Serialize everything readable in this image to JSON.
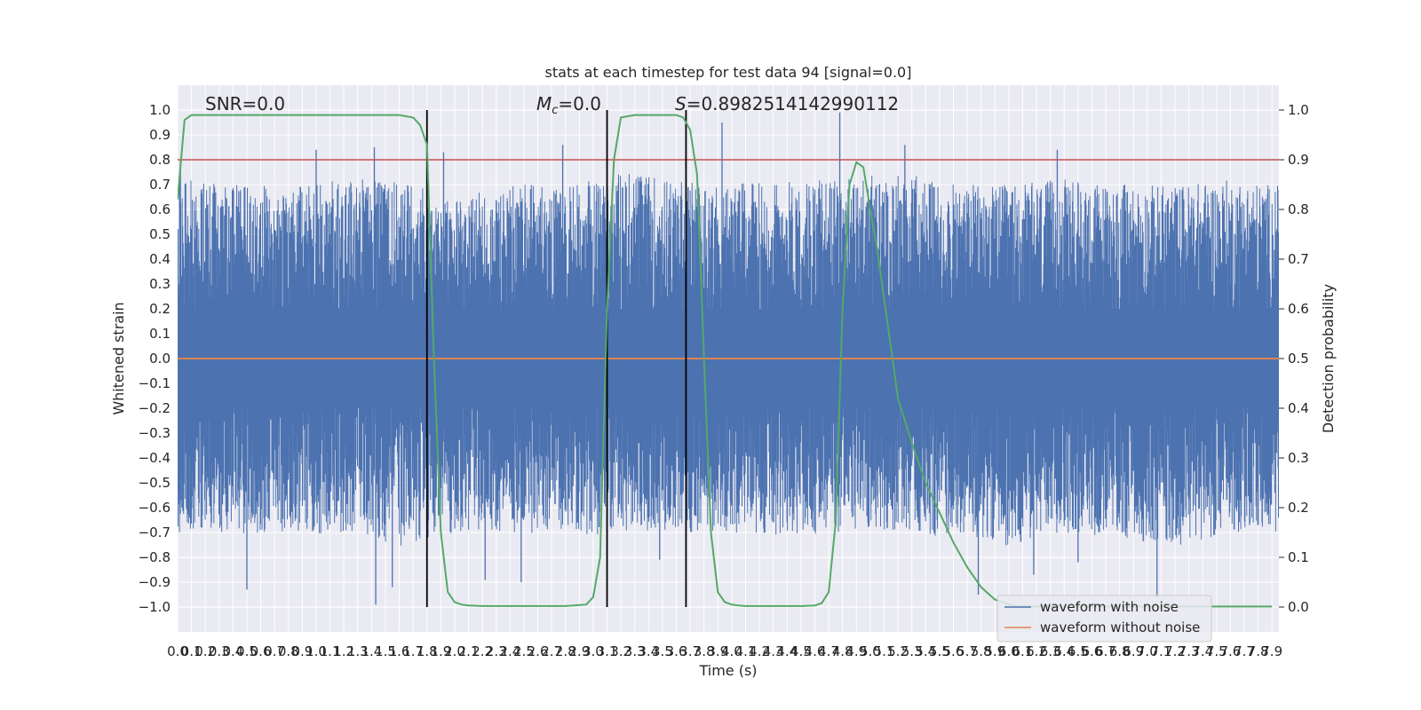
{
  "chart_data": {
    "type": "line",
    "title": "stats at each timestep for test data 94 [signal=0.0]",
    "xlabel": "Time (s)",
    "ylabel": "Whitened strain",
    "ylabel_right": "Detection probability",
    "xlim": [
      0.0,
      7.95
    ],
    "ylim": [
      -1.1,
      1.1
    ],
    "ylim_right": [
      -0.05,
      1.05
    ],
    "x_ticks": [
      0.0,
      0.1,
      0.2,
      0.3,
      0.4,
      0.5,
      0.6,
      0.7,
      0.8,
      0.9,
      1.0,
      1.1,
      1.2,
      1.3,
      1.4,
      1.5,
      1.6,
      1.7,
      1.8,
      1.9,
      2.0,
      2.1,
      2.2,
      2.3,
      2.4,
      2.5,
      2.6,
      2.7,
      2.8,
      2.9,
      3.0,
      3.1,
      3.2,
      3.3,
      3.4,
      3.5,
      3.6,
      3.7,
      3.8,
      3.9,
      4.0,
      4.1,
      4.2,
      4.3,
      4.4,
      4.5,
      4.6,
      4.7,
      4.8,
      4.9,
      5.0,
      5.1,
      5.2,
      5.3,
      5.4,
      5.5,
      5.6,
      5.7,
      5.8,
      5.9,
      6.0,
      6.1,
      6.2,
      6.3,
      6.4,
      6.5,
      6.6,
      6.7,
      6.8,
      6.9,
      7.0,
      7.1,
      7.2,
      7.3,
      7.4,
      7.5,
      7.6,
      7.7,
      7.8,
      7.9
    ],
    "y_ticks_left": [
      "1.0",
      "0.9",
      "0.8",
      "0.7",
      "0.6",
      "0.5",
      "0.4",
      "0.3",
      "0.2",
      "0.1",
      "0.0",
      "−0.1",
      "−0.2",
      "−0.3",
      "−0.4",
      "−0.5",
      "−0.6",
      "−0.7",
      "−0.8",
      "−0.9",
      "−1.0"
    ],
    "y_ticks_right": [
      "1.0",
      "0.9",
      "0.8",
      "0.7",
      "0.6",
      "0.5",
      "0.4",
      "0.3",
      "0.2",
      "0.1",
      "0.0"
    ],
    "grid": true,
    "legend_position": "lower-right",
    "annotations": {
      "snr": "SNR=0.0",
      "mc_symbol": "M",
      "mc_sub": "c",
      "mc_value": "=0.0",
      "s_symbol": "S",
      "s_value": "=0.8982514142990112"
    },
    "threshold_line": {
      "axis": "right",
      "y": 0.9,
      "color": "#c44e52"
    },
    "vertical_markers": [
      1.8,
      3.1,
      3.67
    ],
    "series": [
      {
        "name": "waveform with noise",
        "axis": "left",
        "color": "#4c72b0",
        "description_values": "noise, typical envelope about ±0.3 to ±0.5, peaks near 0.85 and -0.95",
        "envelope_x": [
          0.0,
          0.4,
          0.8,
          1.2,
          1.6,
          2.0,
          2.4,
          2.8,
          3.2,
          3.6,
          4.0,
          4.4,
          4.8,
          5.2,
          5.6,
          6.0,
          6.4,
          6.8,
          7.2,
          7.6,
          7.95
        ],
        "envelope_upper": [
          0.55,
          0.5,
          0.5,
          0.52,
          0.52,
          0.45,
          0.5,
          0.5,
          0.55,
          0.52,
          0.5,
          0.52,
          0.52,
          0.55,
          0.5,
          0.5,
          0.52,
          0.5,
          0.5,
          0.52,
          0.5
        ],
        "envelope_lower": [
          -0.5,
          -0.5,
          -0.52,
          -0.5,
          -0.55,
          -0.5,
          -0.5,
          -0.52,
          -0.5,
          -0.5,
          -0.5,
          -0.52,
          -0.5,
          -0.5,
          -0.52,
          -0.55,
          -0.5,
          -0.52,
          -0.55,
          -0.5,
          -0.5
        ],
        "spikes": [
          {
            "x": 0.02,
            "y": 0.8
          },
          {
            "x": 1.0,
            "y": 0.84
          },
          {
            "x": 1.42,
            "y": 0.85
          },
          {
            "x": 1.92,
            "y": 0.83
          },
          {
            "x": 2.78,
            "y": 0.86
          },
          {
            "x": 3.93,
            "y": 0.95
          },
          {
            "x": 4.78,
            "y": 0.99
          },
          {
            "x": 5.25,
            "y": 0.86
          },
          {
            "x": 6.35,
            "y": 0.84
          },
          {
            "x": 0.5,
            "y": -0.93
          },
          {
            "x": 1.43,
            "y": -0.99
          },
          {
            "x": 1.55,
            "y": -0.92
          },
          {
            "x": 2.22,
            "y": -0.89
          },
          {
            "x": 2.48,
            "y": -0.9
          },
          {
            "x": 5.78,
            "y": -0.95
          },
          {
            "x": 6.5,
            "y": -0.82
          },
          {
            "x": 7.07,
            "y": -0.96
          },
          {
            "x": 6.18,
            "y": -0.87
          },
          {
            "x": 3.48,
            "y": -0.81
          }
        ]
      },
      {
        "name": "waveform without noise",
        "axis": "left",
        "color": "#dd8452",
        "x": [
          0.0,
          7.95
        ],
        "y": [
          0.0,
          0.0
        ]
      },
      {
        "name": "Detection probability",
        "axis": "right",
        "color": "#55a868",
        "x": [
          0.0,
          0.05,
          0.1,
          0.2,
          0.3,
          0.5,
          0.8,
          1.0,
          1.2,
          1.4,
          1.6,
          1.7,
          1.75,
          1.8,
          1.85,
          1.9,
          1.95,
          2.0,
          2.05,
          2.1,
          2.2,
          2.4,
          2.6,
          2.8,
          2.95,
          3.0,
          3.05,
          3.1,
          3.15,
          3.2,
          3.3,
          3.4,
          3.5,
          3.6,
          3.65,
          3.7,
          3.75,
          3.8,
          3.85,
          3.9,
          3.95,
          4.0,
          4.05,
          4.1,
          4.3,
          4.5,
          4.6,
          4.65,
          4.7,
          4.75,
          4.8,
          4.85,
          4.9,
          4.95,
          5.0,
          5.05,
          5.1,
          5.15,
          5.2,
          5.3,
          5.4,
          5.5,
          5.6,
          5.7,
          5.8,
          5.9,
          6.0,
          6.05,
          6.1,
          6.2,
          6.3,
          6.5,
          6.8,
          7.2,
          7.6,
          7.9
        ],
        "y": [
          0.82,
          0.98,
          0.99,
          0.99,
          0.99,
          0.99,
          0.99,
          0.99,
          0.99,
          0.99,
          0.99,
          0.985,
          0.97,
          0.93,
          0.5,
          0.15,
          0.03,
          0.01,
          0.005,
          0.003,
          0.002,
          0.002,
          0.002,
          0.002,
          0.005,
          0.02,
          0.1,
          0.6,
          0.9,
          0.985,
          0.99,
          0.99,
          0.99,
          0.99,
          0.985,
          0.96,
          0.87,
          0.5,
          0.15,
          0.03,
          0.01,
          0.005,
          0.003,
          0.002,
          0.002,
          0.002,
          0.003,
          0.008,
          0.03,
          0.17,
          0.6,
          0.85,
          0.895,
          0.885,
          0.8,
          0.72,
          0.62,
          0.52,
          0.42,
          0.33,
          0.25,
          0.19,
          0.13,
          0.08,
          0.04,
          0.015,
          0.005,
          0.002,
          0.001,
          0.001,
          0.001,
          0.001,
          0.001,
          0.001,
          0.001,
          0.001
        ]
      }
    ]
  }
}
